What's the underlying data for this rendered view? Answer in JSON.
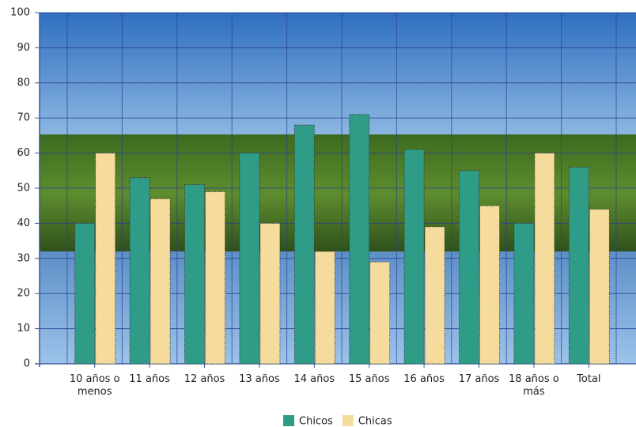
{
  "chart_data": {
    "type": "bar",
    "categories": [
      "10 años o menos",
      "11 años",
      "12 años",
      "13 años",
      "14 años",
      "15 años",
      "16 años",
      "17 años",
      "18 años o más",
      "Total"
    ],
    "series": [
      {
        "name": "Chicos",
        "color": "#2f9c88",
        "values": [
          40,
          53,
          51,
          60,
          68,
          71,
          61,
          55,
          40,
          56
        ]
      },
      {
        "name": "Chicas",
        "color": "#f6dc9c",
        "values": [
          60,
          47,
          49,
          40,
          32,
          29,
          39,
          45,
          60,
          44
        ]
      }
    ],
    "ylim": [
      0,
      100
    ],
    "yticks": [
      0,
      10,
      20,
      30,
      40,
      50,
      60,
      70,
      80,
      90,
      100
    ],
    "grid": true
  }
}
